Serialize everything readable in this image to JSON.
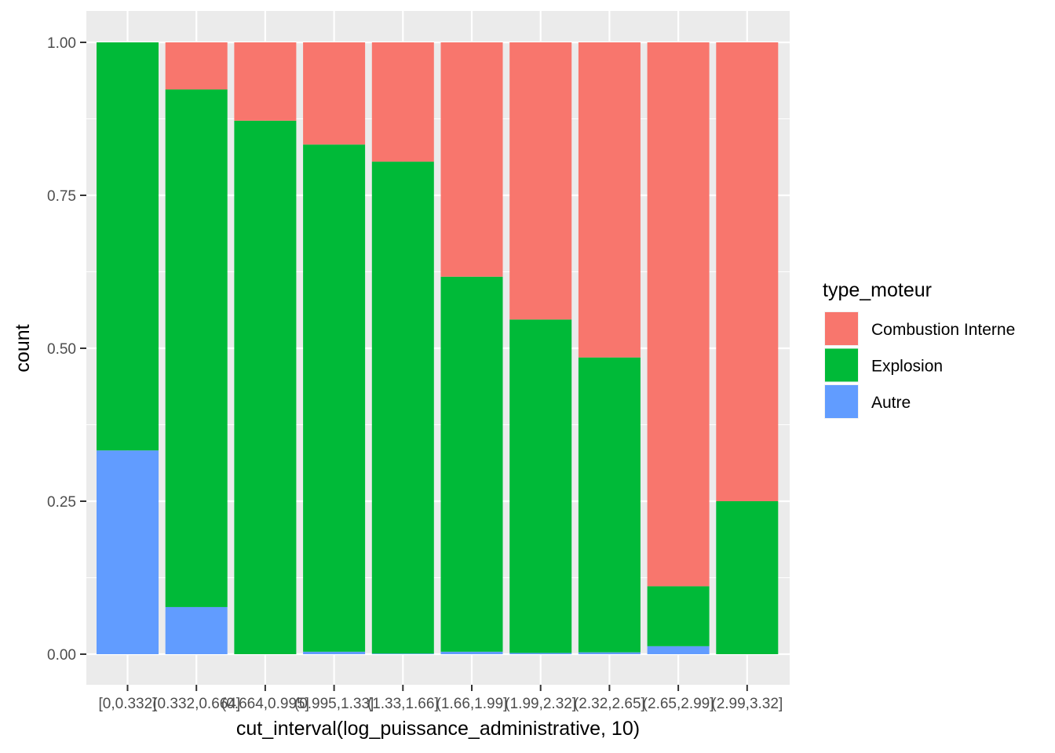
{
  "chart_data": {
    "type": "bar",
    "stacked": true,
    "normalized": true,
    "categories": [
      "[0,0.332]",
      "(0.332,0.664]",
      "(0.664,0.995]",
      "(0.995,1.33]",
      "(1.33,1.66]",
      "(1.66,1.99]",
      "(1.99,2.32]",
      "(2.32,2.65]",
      "(2.65,2.99]",
      "(2.99,3.32]"
    ],
    "series": [
      {
        "name": "Combustion Interne",
        "color": "#F8766D",
        "values": [
          0.0,
          0.077,
          0.128,
          0.167,
          0.195,
          0.383,
          0.453,
          0.515,
          0.889,
          0.75
        ]
      },
      {
        "name": "Explosion",
        "color": "#00BA38",
        "values": [
          0.667,
          0.846,
          0.872,
          0.829,
          0.804,
          0.613,
          0.545,
          0.482,
          0.098,
          0.25
        ]
      },
      {
        "name": "Autre",
        "color": "#619CFF",
        "values": [
          0.333,
          0.077,
          0.0,
          0.004,
          0.001,
          0.004,
          0.002,
          0.003,
          0.013,
          0.0
        ]
      }
    ],
    "xlabel": "cut_interval(log_puissance_administrative, 10)",
    "ylabel": "count",
    "ylim": [
      0,
      1
    ],
    "yticks": [
      "0.00",
      "0.25",
      "0.50",
      "0.75",
      "1.00"
    ],
    "legend_title": "type_moteur",
    "legend_position": "right",
    "grid": true
  }
}
